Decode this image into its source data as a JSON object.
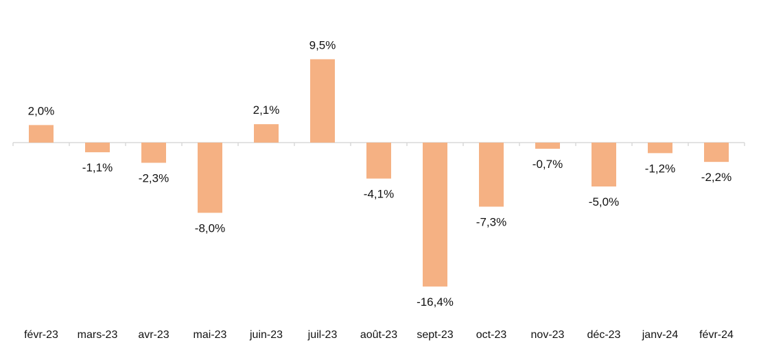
{
  "chart_data": {
    "type": "bar",
    "title": "",
    "xlabel": "",
    "ylabel": "",
    "categories": [
      "févr-23",
      "mars-23",
      "avr-23",
      "mai-23",
      "juin-23",
      "juil-23",
      "août-23",
      "sept-23",
      "oct-23",
      "nov-23",
      "déc-23",
      "janv-24",
      "févr-24"
    ],
    "values": [
      2.0,
      -1.1,
      -2.3,
      -8.0,
      2.1,
      9.5,
      -4.1,
      -16.4,
      -7.3,
      -0.7,
      -5.0,
      -1.2,
      -2.2
    ],
    "value_labels": [
      "2,0%",
      "-1,1%",
      "-2,3%",
      "-8,0%",
      "2,1%",
      "9,5%",
      "-4,1%",
      "-16,4%",
      "-7,3%",
      "-0,7%",
      "-5,0%",
      "-1,2%",
      "-2,2%"
    ],
    "ylim": [
      -18,
      12
    ],
    "grid": false,
    "legend": "none",
    "colors": {
      "bar": "#f5b183",
      "axis": "#d9d9d9",
      "text": "#111111"
    }
  }
}
